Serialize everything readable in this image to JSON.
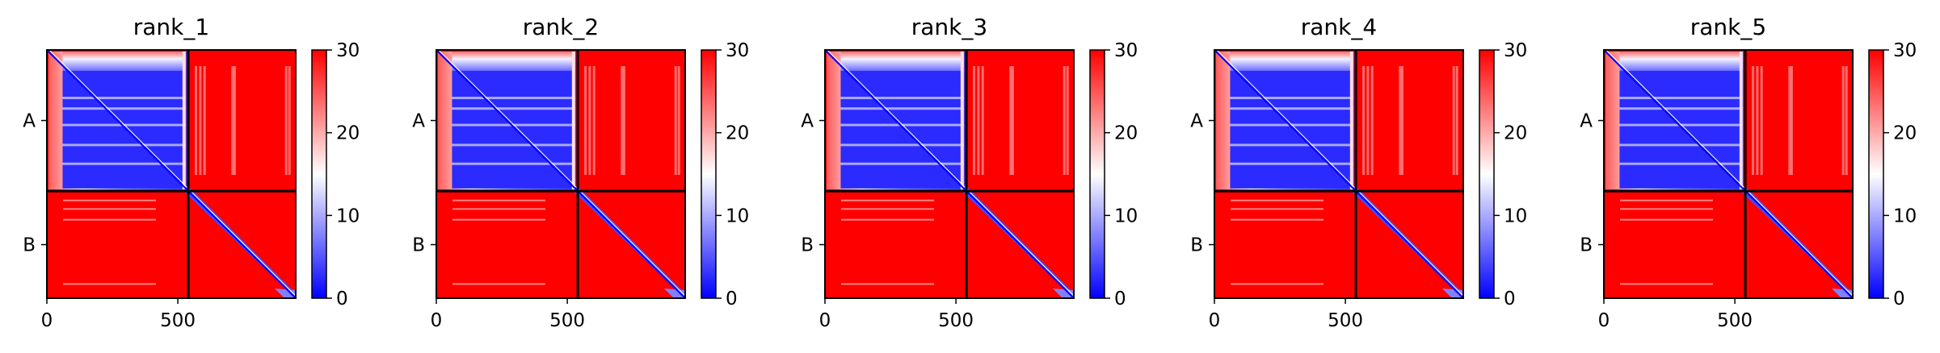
{
  "chart_data": [
    {
      "type": "heatmap",
      "title": "rank_1",
      "chains": [
        "A",
        "B"
      ],
      "chain_boundary": 540,
      "residue_count": 950,
      "xticks": [
        0,
        500
      ],
      "xlim": [
        0,
        950
      ],
      "colorbar": {
        "ticks": [
          0,
          10,
          20,
          30
        ],
        "range": [
          0,
          30
        ],
        "colormap": "bwr",
        "low_color": "#0000ff",
        "mid_color": "#ffffff",
        "high_color": "#ff0000"
      },
      "approx_mean_error": {
        "A_A": 6,
        "A_B": 30,
        "B_A": 30,
        "B_B": 30,
        "diagonal": 0
      }
    },
    {
      "type": "heatmap",
      "title": "rank_2",
      "chains": [
        "A",
        "B"
      ],
      "chain_boundary": 540,
      "residue_count": 950,
      "xticks": [
        0,
        500
      ],
      "xlim": [
        0,
        950
      ],
      "colorbar": {
        "ticks": [
          0,
          10,
          20,
          30
        ],
        "range": [
          0,
          30
        ],
        "colormap": "bwr",
        "low_color": "#0000ff",
        "mid_color": "#ffffff",
        "high_color": "#ff0000"
      },
      "approx_mean_error": {
        "A_A": 6,
        "A_B": 30,
        "B_A": 30,
        "B_B": 30,
        "diagonal": 0
      }
    },
    {
      "type": "heatmap",
      "title": "rank_3",
      "chains": [
        "A",
        "B"
      ],
      "chain_boundary": 540,
      "residue_count": 950,
      "xticks": [
        0,
        500
      ],
      "xlim": [
        0,
        950
      ],
      "colorbar": {
        "ticks": [
          0,
          10,
          20,
          30
        ],
        "range": [
          0,
          30
        ],
        "colormap": "bwr",
        "low_color": "#0000ff",
        "mid_color": "#ffffff",
        "high_color": "#ff0000"
      },
      "approx_mean_error": {
        "A_A": 6,
        "A_B": 30,
        "B_A": 30,
        "B_B": 30,
        "diagonal": 0
      }
    },
    {
      "type": "heatmap",
      "title": "rank_4",
      "chains": [
        "A",
        "B"
      ],
      "chain_boundary": 540,
      "residue_count": 950,
      "xticks": [
        0,
        500
      ],
      "xlim": [
        0,
        950
      ],
      "colorbar": {
        "ticks": [
          0,
          10,
          20,
          30
        ],
        "range": [
          0,
          30
        ],
        "colormap": "bwr",
        "low_color": "#0000ff",
        "mid_color": "#ffffff",
        "high_color": "#ff0000"
      },
      "approx_mean_error": {
        "A_A": 6,
        "A_B": 30,
        "B_A": 30,
        "B_B": 30,
        "diagonal": 0
      }
    },
    {
      "type": "heatmap",
      "title": "rank_5",
      "chains": [
        "A",
        "B"
      ],
      "chain_boundary": 540,
      "residue_count": 950,
      "xticks": [
        0,
        500
      ],
      "xlim": [
        0,
        950
      ],
      "colorbar": {
        "ticks": [
          0,
          10,
          20,
          30
        ],
        "range": [
          0,
          30
        ],
        "colormap": "bwr",
        "low_color": "#0000ff",
        "mid_color": "#ffffff",
        "high_color": "#ff0000"
      },
      "approx_mean_error": {
        "A_A": 6,
        "A_B": 30,
        "B_A": 30,
        "B_B": 30,
        "diagonal": 0
      }
    }
  ]
}
